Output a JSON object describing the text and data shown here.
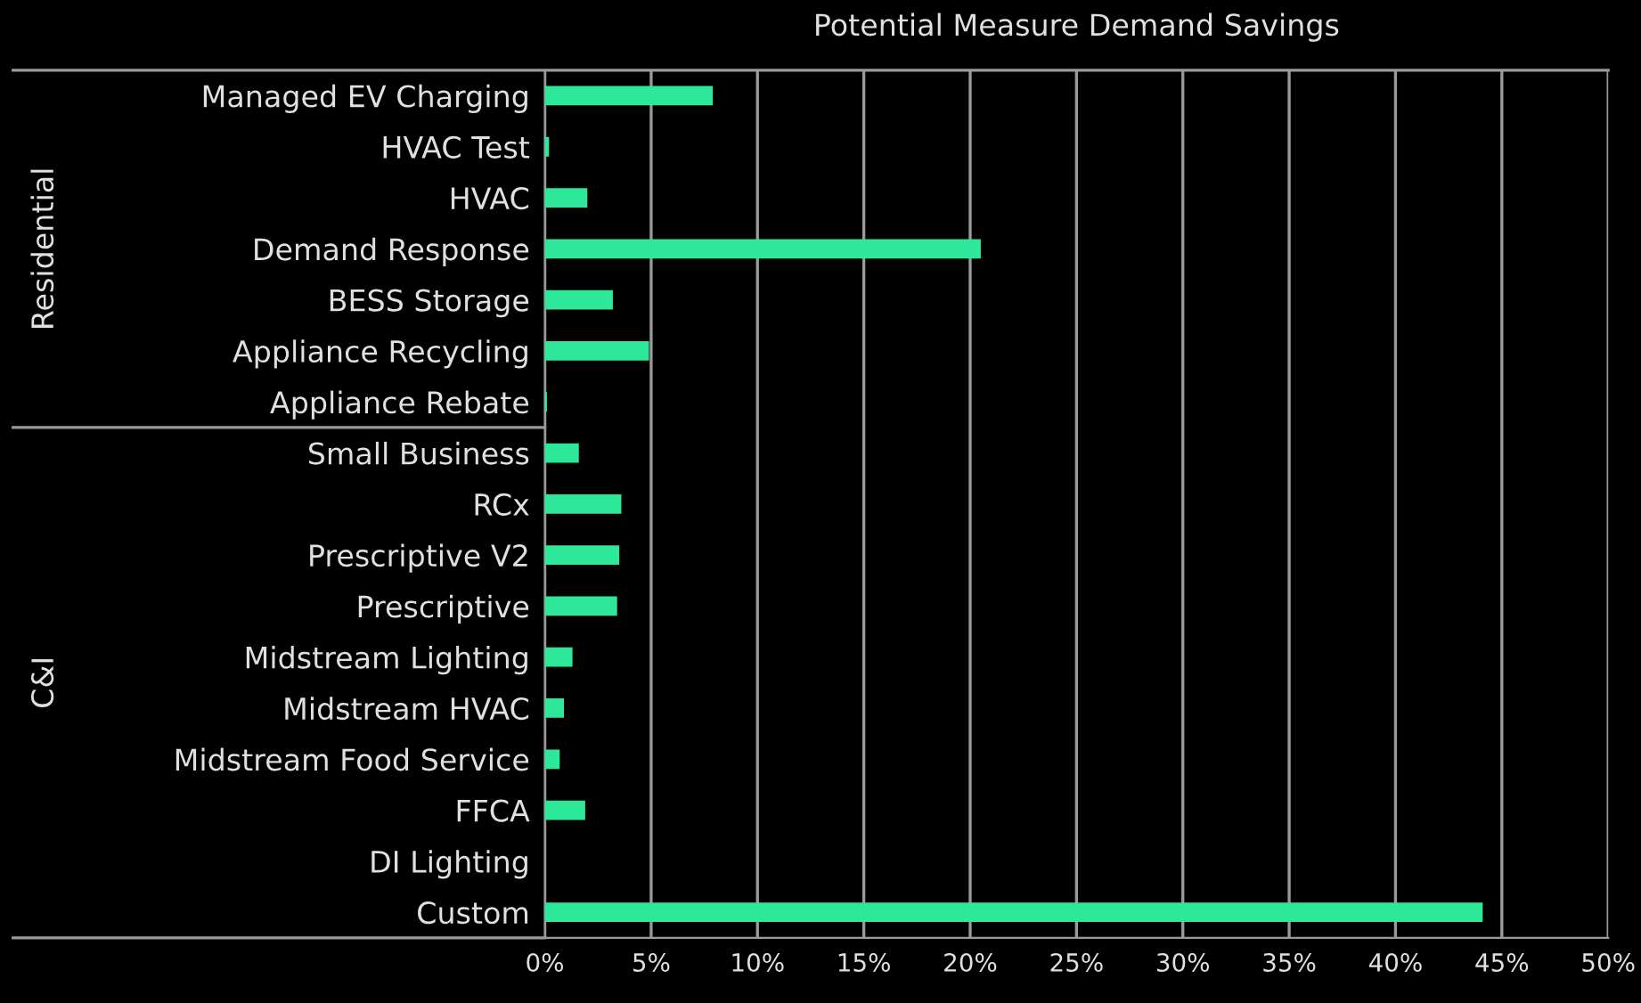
{
  "chart_data": {
    "type": "bar",
    "orientation": "horizontal",
    "title": "Potential Measure Demand Savings",
    "categories": [
      "Managed EV Charging",
      "HVAC Test",
      "HVAC",
      "Demand Response",
      "BESS Storage",
      "Appliance Recycling",
      "Appliance Rebate",
      "Small Business",
      "RCx",
      "Prescriptive V2",
      "Prescriptive",
      "Midstream Lighting",
      "Midstream HVAC",
      "Midstream Food Service",
      "FFCA",
      "DI Lighting",
      "Custom"
    ],
    "values": [
      7.9,
      0.2,
      2,
      20.5,
      3.2,
      4.9,
      0.1,
      1.6,
      3.6,
      3.5,
      3.4,
      1.3,
      0.9,
      0.7,
      1.9,
      0,
      44.1
    ],
    "color": "#2ee89a",
    "xlim": [
      0,
      50
    ],
    "xticks": [
      {
        "value": 0,
        "label": "0%"
      },
      {
        "value": 5,
        "label": "5%"
      },
      {
        "value": 10,
        "label": "10%"
      },
      {
        "value": 15,
        "label": "15%"
      },
      {
        "value": 20,
        "label": "20%"
      },
      {
        "value": 25,
        "label": "25%"
      },
      {
        "value": 30,
        "label": "30%"
      },
      {
        "value": 35,
        "label": "35%"
      },
      {
        "value": 40,
        "label": "40%"
      },
      {
        "value": 45,
        "label": "45%"
      },
      {
        "value": 50,
        "label": "50%"
      }
    ],
    "grid": "x",
    "annotations": [
      "Residential",
      "C&I"
    ]
  }
}
